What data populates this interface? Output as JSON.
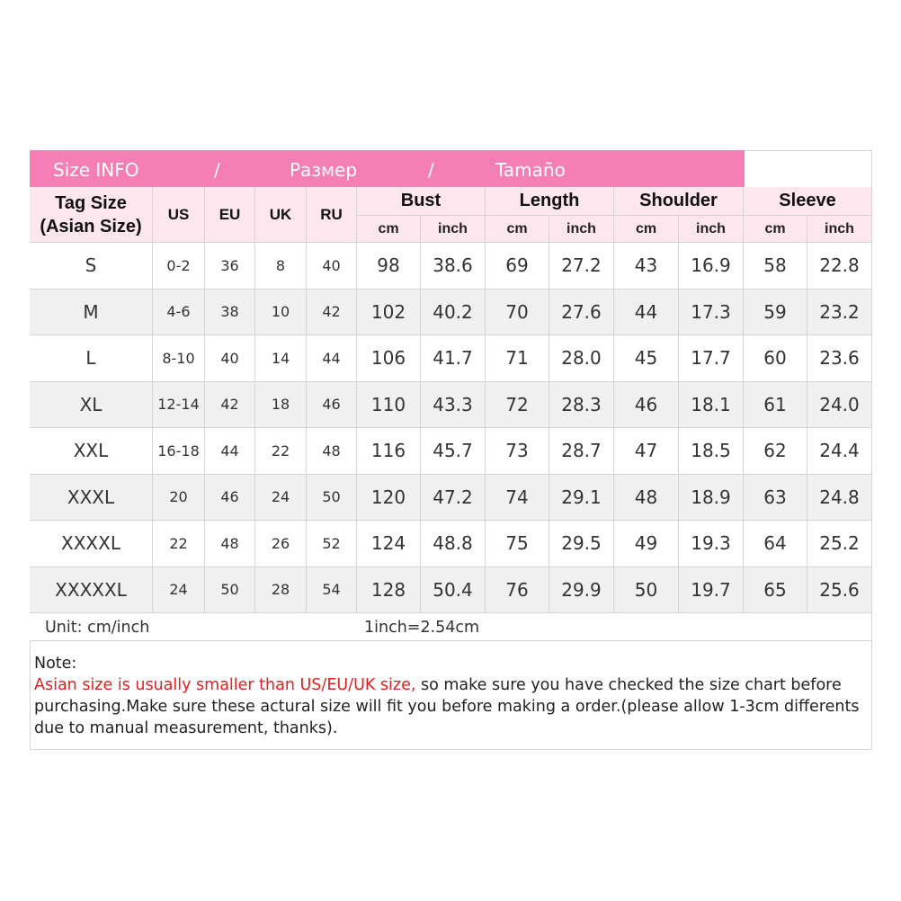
{
  "banner": {
    "size_info": "Size INFO",
    "sep1": "/",
    "razmer": "Размер",
    "sep2": "/",
    "tamano": "Tamaño"
  },
  "header": {
    "tag_size": "Tag Size",
    "tag_size_sub": "(Asian Size)",
    "us": "US",
    "eu": "EU",
    "uk": "UK",
    "ru": "RU",
    "bust": "Bust",
    "length": "Length",
    "shoulder": "Shoulder",
    "sleeve": "Sleeve",
    "units": [
      "cm",
      "inch",
      "cm",
      "inch",
      "cm",
      "inch",
      "cm",
      "inch"
    ]
  },
  "table": {
    "rows": [
      [
        "S",
        "0-2",
        "36",
        "8",
        "40",
        "98",
        "38.6",
        "69",
        "27.2",
        "43",
        "16.9",
        "58",
        "22.8"
      ],
      [
        "M",
        "4-6",
        "38",
        "10",
        "42",
        "102",
        "40.2",
        "70",
        "27.6",
        "44",
        "17.3",
        "59",
        "23.2"
      ],
      [
        "L",
        "8-10",
        "40",
        "14",
        "44",
        "106",
        "41.7",
        "71",
        "28.0",
        "45",
        "17.7",
        "60",
        "23.6"
      ],
      [
        "XL",
        "12-14",
        "42",
        "18",
        "46",
        "110",
        "43.3",
        "72",
        "28.3",
        "46",
        "18.1",
        "61",
        "24.0"
      ],
      [
        "XXL",
        "16-18",
        "44",
        "22",
        "48",
        "116",
        "45.7",
        "73",
        "28.7",
        "47",
        "18.5",
        "62",
        "24.4"
      ],
      [
        "XXXL",
        "20",
        "46",
        "24",
        "50",
        "120",
        "47.2",
        "74",
        "29.1",
        "48",
        "18.9",
        "63",
        "24.8"
      ],
      [
        "XXXXL",
        "22",
        "48",
        "26",
        "52",
        "124",
        "48.8",
        "75",
        "29.5",
        "49",
        "19.3",
        "64",
        "25.2"
      ],
      [
        "XXXXXL",
        "24",
        "50",
        "28",
        "54",
        "128",
        "50.4",
        "76",
        "29.9",
        "50",
        "19.7",
        "65",
        "25.6"
      ]
    ]
  },
  "footer": {
    "unit": "Unit: cm/inch",
    "conversion": "1inch=2.54cm"
  },
  "note": {
    "label": "Note:",
    "highlight": "Asian size is usually smaller than US/EU/UK size,",
    "text": " so make sure you have checked the size chart before purchasing.Make sure these actural size will fit you before making a order.(please allow 1-3cm differents due to manual measurement, thanks)."
  }
}
